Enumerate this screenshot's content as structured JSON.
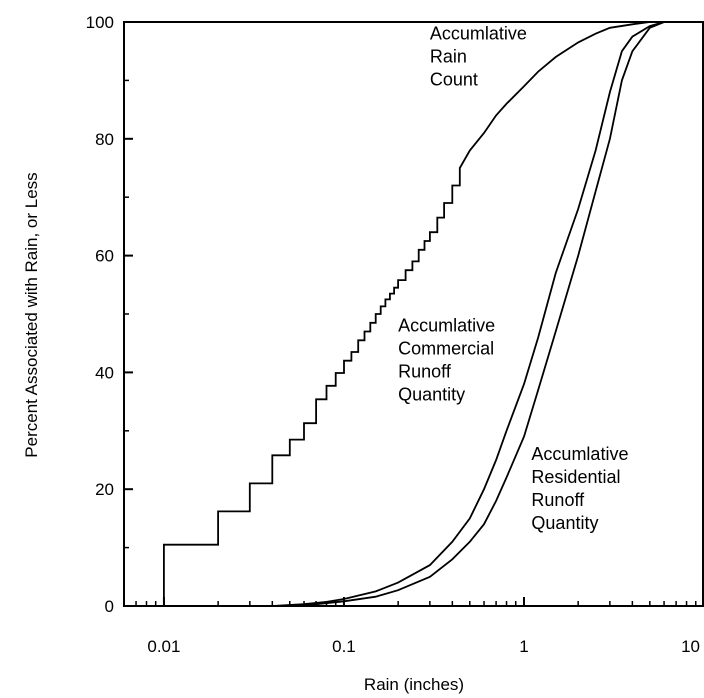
{
  "chart_data": {
    "type": "line",
    "title": "",
    "xlabel": "Rain (inches)",
    "ylabel": "Percent Associated with Rain, or Less",
    "x_scale": "log",
    "xlim": [
      0.006,
      10
    ],
    "ylim": [
      0,
      100
    ],
    "x_ticks": [
      {
        "value": 0.01,
        "label": "0.01"
      },
      {
        "value": 0.1,
        "label": "0.1"
      },
      {
        "value": 1,
        "label": "1"
      },
      {
        "value": 10,
        "label": "10"
      }
    ],
    "y_ticks": [
      {
        "value": 0,
        "label": "0"
      },
      {
        "value": 20,
        "label": "20"
      },
      {
        "value": 40,
        "label": "40"
      },
      {
        "value": 60,
        "label": "60"
      },
      {
        "value": 80,
        "label": "80"
      },
      {
        "value": 100,
        "label": "100"
      }
    ],
    "grid": false,
    "line_color": "#000000",
    "series": [
      {
        "name": "Accumlative Rain Count",
        "step": true,
        "points": [
          [
            0.01,
            0
          ],
          [
            0.01,
            10.5
          ],
          [
            0.02,
            10.5
          ],
          [
            0.02,
            16.2
          ],
          [
            0.03,
            16.2
          ],
          [
            0.03,
            21
          ],
          [
            0.04,
            21
          ],
          [
            0.04,
            25.8
          ],
          [
            0.05,
            25.8
          ],
          [
            0.05,
            28.5
          ],
          [
            0.06,
            28.5
          ],
          [
            0.06,
            31.3
          ],
          [
            0.07,
            31.3
          ],
          [
            0.07,
            35.4
          ],
          [
            0.08,
            35.4
          ],
          [
            0.08,
            37.7
          ],
          [
            0.09,
            37.7
          ],
          [
            0.09,
            39.9
          ],
          [
            0.1,
            39.9
          ],
          [
            0.1,
            42
          ],
          [
            0.11,
            42
          ],
          [
            0.11,
            43.5
          ],
          [
            0.12,
            43.5
          ],
          [
            0.12,
            45.5
          ],
          [
            0.13,
            45.5
          ],
          [
            0.13,
            47
          ],
          [
            0.14,
            47
          ],
          [
            0.14,
            48.5
          ],
          [
            0.15,
            48.5
          ],
          [
            0.15,
            50
          ],
          [
            0.16,
            50
          ],
          [
            0.16,
            51.3
          ],
          [
            0.17,
            51.3
          ],
          [
            0.17,
            52.5
          ],
          [
            0.18,
            52.5
          ],
          [
            0.18,
            53.5
          ],
          [
            0.19,
            53.5
          ],
          [
            0.19,
            54.5
          ],
          [
            0.2,
            54.5
          ],
          [
            0.2,
            55.8
          ],
          [
            0.22,
            55.8
          ],
          [
            0.22,
            57.5
          ],
          [
            0.24,
            57.5
          ],
          [
            0.24,
            59
          ],
          [
            0.26,
            59
          ],
          [
            0.26,
            61
          ],
          [
            0.28,
            61
          ],
          [
            0.28,
            62.5
          ],
          [
            0.3,
            62.5
          ],
          [
            0.3,
            64
          ],
          [
            0.33,
            64
          ],
          [
            0.33,
            66.5
          ],
          [
            0.36,
            66.5
          ],
          [
            0.36,
            69
          ],
          [
            0.4,
            69
          ],
          [
            0.4,
            72
          ],
          [
            0.44,
            72
          ],
          [
            0.44,
            75
          ],
          [
            0.5,
            78
          ],
          [
            0.6,
            81
          ],
          [
            0.7,
            84
          ],
          [
            0.8,
            86
          ],
          [
            1.0,
            89
          ],
          [
            1.2,
            91.5
          ],
          [
            1.5,
            94
          ],
          [
            2.0,
            96.5
          ],
          [
            2.5,
            98
          ],
          [
            3.0,
            99
          ],
          [
            4.0,
            99.6
          ],
          [
            5.0,
            100
          ],
          [
            10,
            100
          ]
        ]
      },
      {
        "name": "Accumlative Commercial Runoff Quantity",
        "step": false,
        "points": [
          [
            0.04,
            0
          ],
          [
            0.06,
            0.3
          ],
          [
            0.08,
            0.7
          ],
          [
            0.1,
            1.2
          ],
          [
            0.15,
            2.5
          ],
          [
            0.2,
            4
          ],
          [
            0.3,
            7
          ],
          [
            0.4,
            11
          ],
          [
            0.5,
            15
          ],
          [
            0.6,
            20
          ],
          [
            0.7,
            25
          ],
          [
            0.8,
            30
          ],
          [
            1.0,
            38
          ],
          [
            1.2,
            46
          ],
          [
            1.5,
            57
          ],
          [
            2.0,
            68
          ],
          [
            2.5,
            78
          ],
          [
            3.0,
            88
          ],
          [
            3.5,
            95
          ],
          [
            4.0,
            97.5
          ],
          [
            5.0,
            99.3
          ],
          [
            6.0,
            100
          ],
          [
            10,
            100
          ]
        ]
      },
      {
        "name": "Accumlative Residential Runoff Quantity",
        "step": false,
        "points": [
          [
            0.05,
            0
          ],
          [
            0.07,
            0.3
          ],
          [
            0.1,
            0.8
          ],
          [
            0.15,
            1.6
          ],
          [
            0.2,
            2.7
          ],
          [
            0.3,
            5
          ],
          [
            0.4,
            8
          ],
          [
            0.5,
            11
          ],
          [
            0.6,
            14
          ],
          [
            0.7,
            18
          ],
          [
            0.8,
            22
          ],
          [
            1.0,
            29
          ],
          [
            1.2,
            37
          ],
          [
            1.5,
            47
          ],
          [
            2.0,
            60
          ],
          [
            2.5,
            71
          ],
          [
            3.0,
            80
          ],
          [
            3.5,
            90
          ],
          [
            4.0,
            95
          ],
          [
            5.0,
            99
          ],
          [
            6.0,
            100
          ],
          [
            10,
            100
          ]
        ]
      }
    ],
    "annotations": [
      {
        "lines": [
          "Accumlative",
          "Rain",
          "Count"
        ],
        "x": 0.3,
        "y": 97
      },
      {
        "lines": [
          "Accumlative",
          "Commercial",
          "Runoff",
          "Quantity"
        ],
        "x": 0.2,
        "y": 47
      },
      {
        "lines": [
          "Accumlative",
          "Residential",
          "Runoff",
          "Quantity"
        ],
        "x": 1.1,
        "y": 25
      }
    ]
  }
}
